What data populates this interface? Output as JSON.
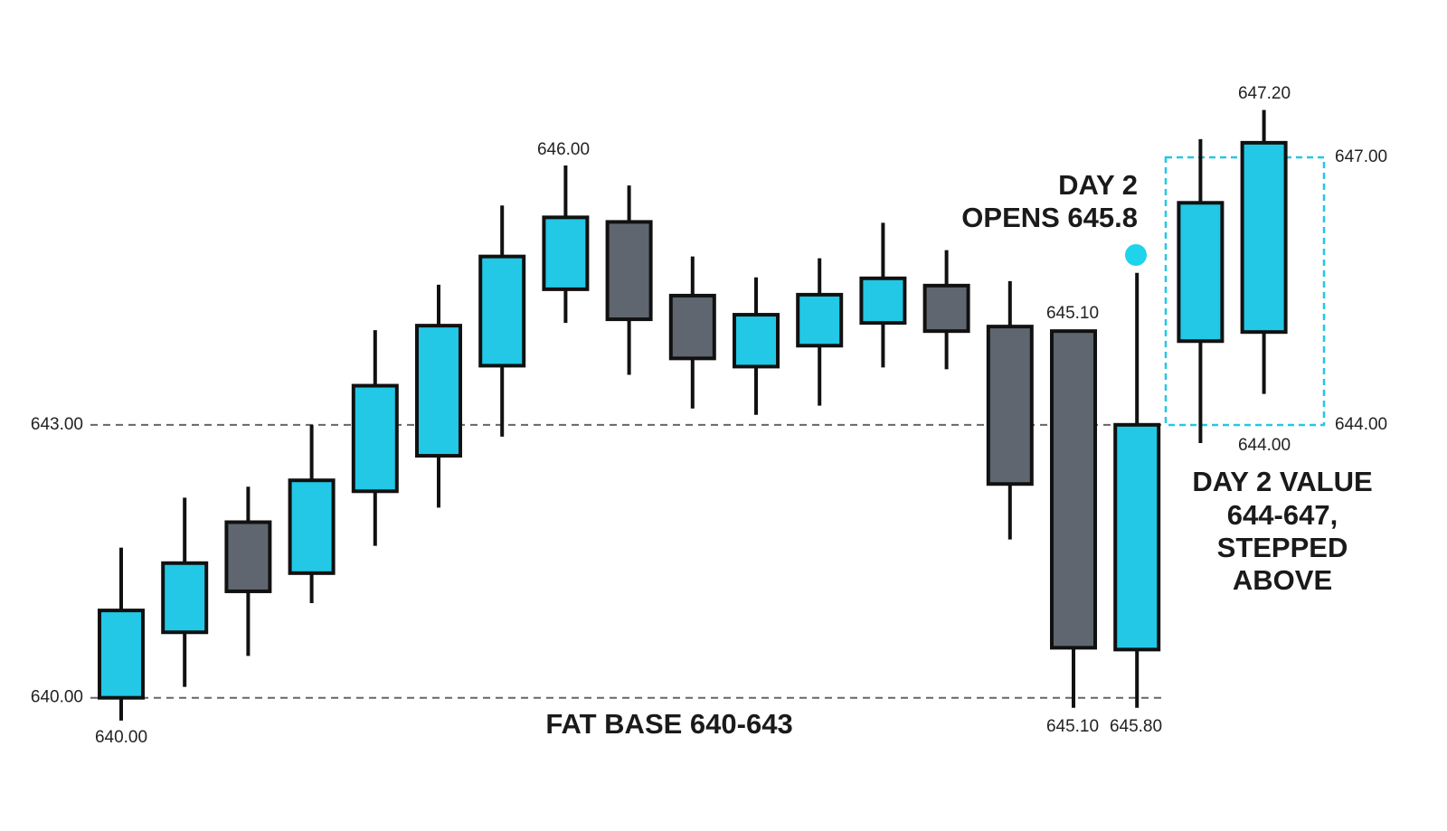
{
  "chart_data": {
    "type": "candlestick",
    "up_color": "#22c8e5",
    "down_color": "#5f6670",
    "ylim": [
      639.5,
      647.5
    ],
    "yticks": [
      {
        "value": 640,
        "label": "640.00"
      },
      {
        "value": 643,
        "label": "643.00"
      }
    ],
    "grid": true,
    "candles": [
      {
        "open": 640.0,
        "high": 641.65,
        "low": 639.75,
        "close": 640.96
      },
      {
        "open": 640.72,
        "high": 642.2,
        "low": 640.12,
        "close": 641.48
      },
      {
        "open": 641.93,
        "high": 642.32,
        "low": 640.46,
        "close": 641.17
      },
      {
        "open": 641.37,
        "high": 643.0,
        "low": 641.04,
        "close": 642.39
      },
      {
        "open": 642.27,
        "high": 644.04,
        "low": 641.67,
        "close": 643.43
      },
      {
        "open": 642.66,
        "high": 644.54,
        "low": 642.09,
        "close": 644.09
      },
      {
        "open": 643.65,
        "high": 645.41,
        "low": 642.87,
        "close": 644.85
      },
      {
        "open": 644.49,
        "high": 645.85,
        "low": 644.12,
        "close": 645.28
      },
      {
        "open": 645.23,
        "high": 645.63,
        "low": 643.55,
        "close": 644.16
      },
      {
        "open": 644.42,
        "high": 644.85,
        "low": 643.18,
        "close": 643.73
      },
      {
        "open": 643.64,
        "high": 644.62,
        "low": 643.11,
        "close": 644.21
      },
      {
        "open": 643.87,
        "high": 644.83,
        "low": 643.21,
        "close": 644.43
      },
      {
        "open": 644.12,
        "high": 645.22,
        "low": 643.63,
        "close": 644.61
      },
      {
        "open": 644.53,
        "high": 644.92,
        "low": 643.61,
        "close": 644.03
      },
      {
        "open": 644.08,
        "high": 644.58,
        "low": 641.74,
        "close": 642.35
      },
      {
        "open": 644.03,
        "high": 644.03,
        "low": 639.89,
        "close": 640.55
      },
      {
        "open": 640.53,
        "high": 644.67,
        "low": 639.89,
        "close": 643.0
      },
      {
        "open": 643.92,
        "high": 646.14,
        "low": 642.8,
        "close": 645.44
      },
      {
        "open": 644.02,
        "high": 646.46,
        "low": 643.34,
        "close": 646.1
      }
    ],
    "annotations": [
      "646.00",
      "DAY 2",
      "OPENS 645.8",
      "645.10",
      "640.00",
      "FAT BASE 640-643",
      "645.10",
      "645.80",
      "647.20",
      "647.00",
      "644.00",
      "644.00",
      "DAY 2 VALUE",
      "644-647,",
      "STEPPED",
      "ABOVE"
    ]
  }
}
